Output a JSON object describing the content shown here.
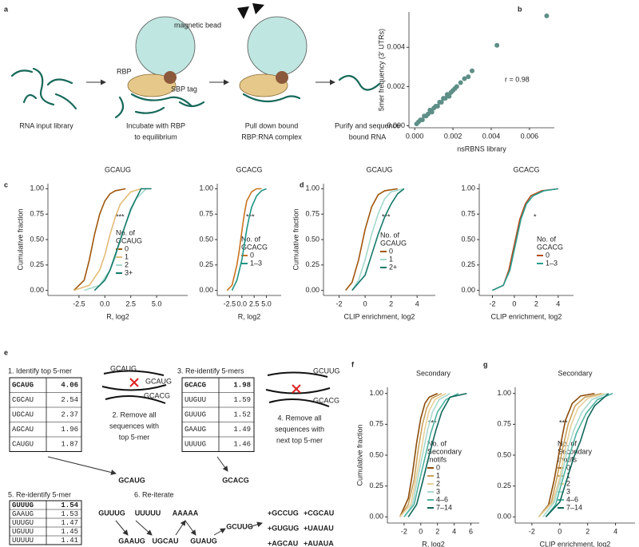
{
  "panel_labels": [
    "a",
    "b",
    "c",
    "d",
    "e",
    "f",
    "g"
  ],
  "diagram_a": {
    "bead_label": "magnetic bead",
    "rbp_label": "RBP",
    "tag_label": "SBP tag",
    "steps": [
      [
        "RNA input library"
      ],
      [
        "Incubate with RBP",
        "to equilibrium"
      ],
      [
        "Pull down bound",
        "RBP:RNA complex"
      ],
      [
        "Purify and sequence",
        "bound RNA"
      ]
    ]
  },
  "diagram_e": {
    "step1": "1. Identify top 5-mer",
    "table1": [
      [
        "GCAUG",
        4.06
      ],
      [
        "CGCAU",
        2.54
      ],
      [
        "UGCAU",
        2.37
      ],
      [
        "AGCAU",
        1.96
      ],
      [
        "CAUGU",
        1.87
      ]
    ],
    "step2": [
      "2. Remove all",
      "sequences with",
      "top 5-mer"
    ],
    "strand_labels_1": [
      "GCAUG",
      "GCAUG",
      "GCACG"
    ],
    "result1": "GCAUG",
    "step3": "3. Re-identify 5-mers",
    "table2": [
      [
        "GCACG",
        1.98
      ],
      [
        "UUGUU",
        1.59
      ],
      [
        "GUUUG",
        1.52
      ],
      [
        "GAAUG",
        1.49
      ],
      [
        "UUUUG",
        1.46
      ]
    ],
    "step4": [
      "4. Remove all",
      "sequences with",
      "next top 5-mer"
    ],
    "strand_labels_2": [
      "GCUUG",
      "GCACG"
    ],
    "result2": "GCACG",
    "step5": "5. Re-identify 5-mer",
    "table3": [
      [
        "GUUUG",
        1.54
      ],
      [
        "GAAUG",
        1.53
      ],
      [
        "UUUGU",
        1.47
      ],
      [
        "UGUUU",
        1.45
      ],
      [
        "UUUUU",
        1.41
      ]
    ],
    "step6": "6. Re-iterate",
    "flow": [
      "GUUUG",
      "UUUUU",
      "AAAAA",
      "GAAUG",
      "UGCAU",
      "GUAUG",
      "GCUUG"
    ],
    "results": [
      [
        "+GCCUG",
        "+CGCAU"
      ],
      [
        "+GUGUG",
        "+UAUAU"
      ],
      [
        "+AGCAU",
        "+AUAUA"
      ]
    ]
  },
  "chart_data": [
    {
      "type": "scatter",
      "x_label": "nsRBNS library",
      "y_label": "5mer frequency (3′ UTRs)",
      "annotation": "r = 0.98",
      "color": "#5e8f87",
      "x": [
        0.0001,
        0.0002,
        0.0003,
        0.0004,
        0.0005,
        0.0006,
        0.0007,
        0.0008,
        0.0009,
        0.001,
        0.0011,
        0.0012,
        0.0013,
        0.0014,
        0.0015,
        0.0016,
        0.0017,
        0.0018,
        0.0019,
        0.002,
        0.0021,
        0.0022,
        0.0024,
        0.0026,
        0.0028,
        0.003,
        0.0043,
        0.0069
      ],
      "values": [
        0.0001,
        0.0002,
        0.0003,
        0.0003,
        0.0005,
        0.0005,
        0.0006,
        0.0008,
        0.0007,
        0.0009,
        0.001,
        0.001,
        0.0012,
        0.0012,
        0.0014,
        0.0014,
        0.0016,
        0.0015,
        0.0017,
        0.0018,
        0.0019,
        0.002,
        0.0022,
        0.0024,
        0.0025,
        0.0028,
        0.0041,
        0.0056
      ],
      "xlim": [
        -0.0003,
        0.0073
      ],
      "ylim": [
        -0.0001,
        0.0058
      ],
      "xticks": [
        {
          "value": 0,
          "label": "0.000"
        },
        {
          "value": 0.002,
          "label": "0.002"
        },
        {
          "value": 0.004,
          "label": "0.004"
        },
        {
          "value": 0.006,
          "label": "0.006"
        }
      ],
      "yticks": [
        {
          "value": 0,
          "label": "0.000"
        },
        {
          "value": 0.002,
          "label": "0.002"
        },
        {
          "value": 0.004,
          "label": "0.004"
        }
      ]
    },
    {
      "type": "line",
      "title": "GCAUG",
      "x_label": "R, log2",
      "y_label": "Cumulative fraction",
      "annotation": "***",
      "legend_title": [
        "No. of",
        "GCAUG"
      ],
      "xlim": [
        -5.5,
        8
      ],
      "ylim": [
        -0.05,
        1.05
      ],
      "xticks": [
        -2.5,
        {
          "value": 0,
          "label": "0.0"
        },
        2.5,
        {
          "value": 5,
          "label": "5.0"
        }
      ],
      "yticks": [
        {
          "value": 0,
          "label": "0.00"
        },
        0.25,
        {
          "value": 0.5,
          "label": "0.50"
        },
        0.75,
        {
          "value": 1,
          "label": "1.00"
        }
      ],
      "series": [
        {
          "name": "0",
          "color": "#a0560c",
          "x": [
            -3,
            -2,
            -1.5,
            -1,
            -0.5,
            0,
            0.5,
            1,
            2
          ],
          "values": [
            0,
            0.1,
            0.3,
            0.55,
            0.75,
            0.88,
            0.95,
            0.98,
            1
          ]
        },
        {
          "name": "1",
          "color": "#e3bd78",
          "x": [
            -3,
            -1.5,
            -0.5,
            0,
            0.5,
            1,
            1.5,
            2.5,
            3.5
          ],
          "values": [
            0,
            0.05,
            0.2,
            0.35,
            0.55,
            0.72,
            0.85,
            0.97,
            1
          ]
        },
        {
          "name": "2",
          "color": "#a3d8cb",
          "x": [
            -2,
            -0.5,
            0.5,
            1,
            1.5,
            2,
            2.5,
            3,
            4
          ],
          "values": [
            0,
            0.05,
            0.2,
            0.32,
            0.5,
            0.65,
            0.78,
            0.9,
            1
          ]
        },
        {
          "name": "3+",
          "color": "#147a6a",
          "x": [
            -1,
            0,
            0.5,
            1,
            1.5,
            2,
            2.5,
            3.5,
            4.5
          ],
          "values": [
            0,
            0.1,
            0.2,
            0.35,
            0.5,
            0.65,
            0.8,
            1,
            1
          ]
        }
      ]
    },
    {
      "type": "line",
      "title": "GCACG",
      "x_label": "R, log2",
      "annotation": "***",
      "legend_title": [
        "No. of",
        "GCACG"
      ],
      "xlim": [
        -5,
        8
      ],
      "ylim": [
        -0.05,
        1.05
      ],
      "xticks": [
        -2.5,
        {
          "value": 0,
          "label": "0.0"
        },
        2.5,
        {
          "value": 5,
          "label": "5.0"
        }
      ],
      "yticks": [
        {
          "value": 0,
          "label": "0.00"
        },
        0.25,
        {
          "value": 0.5,
          "label": "0.50"
        },
        0.75,
        {
          "value": 1,
          "label": "1.00"
        }
      ],
      "series": [
        {
          "name": "0",
          "color": "#c8731f",
          "x": [
            -3,
            -2,
            -1,
            -0.5,
            0,
            0.5,
            1,
            2,
            3,
            4
          ],
          "values": [
            0,
            0.05,
            0.25,
            0.4,
            0.58,
            0.75,
            0.88,
            0.97,
            1,
            1
          ]
        },
        {
          "name": "1–3",
          "color": "#1f9484",
          "x": [
            -2,
            -1,
            0,
            0.5,
            1,
            1.5,
            2,
            3,
            4,
            5
          ],
          "values": [
            0,
            0.1,
            0.3,
            0.45,
            0.6,
            0.72,
            0.82,
            0.93,
            0.98,
            1
          ]
        }
      ]
    },
    {
      "type": "line",
      "title": "GCAUG",
      "x_label": "CLIP enrichment, log2",
      "y_label": "Cumulative fraction",
      "annotation": "***",
      "legend_title": [
        "No. of",
        "GCAUG"
      ],
      "xlim": [
        -3.2,
        5.4
      ],
      "ylim": [
        -0.05,
        1.05
      ],
      "xticks": [
        -2,
        0,
        2,
        4
      ],
      "yticks": [
        {
          "value": 0,
          "label": "0.00"
        },
        0.25,
        {
          "value": 0.5,
          "label": "0.50"
        },
        0.75,
        {
          "value": 1,
          "label": "1.00"
        }
      ],
      "series": [
        {
          "name": "0",
          "color": "#a0560c",
          "x": [
            -1.5,
            -1,
            -0.5,
            0,
            0.5,
            1,
            1.5,
            2.5
          ],
          "values": [
            0,
            0.08,
            0.3,
            0.6,
            0.82,
            0.94,
            0.98,
            1
          ]
        },
        {
          "name": "1",
          "color": "#a3d8cb",
          "x": [
            -1,
            -0.5,
            0,
            0.5,
            1,
            1.5,
            2,
            3
          ],
          "values": [
            0,
            0.1,
            0.3,
            0.55,
            0.75,
            0.9,
            0.97,
            1
          ]
        },
        {
          "name": "2+",
          "color": "#147a6a",
          "x": [
            -1,
            0,
            0.5,
            1,
            1.5,
            2,
            2.5,
            3
          ],
          "values": [
            0,
            0.15,
            0.35,
            0.55,
            0.72,
            0.85,
            0.95,
            1
          ]
        }
      ]
    },
    {
      "type": "line",
      "title": "GCACG",
      "x_label": "CLIP enrichment, log2",
      "annotation": "*",
      "legend_title": [
        "No. of",
        "GCACG"
      ],
      "xlim": [
        -3.2,
        5.4
      ],
      "ylim": [
        -0.05,
        1.05
      ],
      "xticks": [
        -2,
        0,
        2,
        4
      ],
      "yticks": [
        {
          "value": 0,
          "label": "0.00"
        },
        0.25,
        {
          "value": 0.5,
          "label": "0.50"
        },
        0.75,
        {
          "value": 1,
          "label": "1.00"
        }
      ],
      "series": [
        {
          "name": "0",
          "color": "#b5491d",
          "x": [
            -2,
            -1,
            -0.5,
            0,
            0.5,
            1,
            1.5,
            2.5,
            4
          ],
          "values": [
            0,
            0.05,
            0.2,
            0.45,
            0.7,
            0.85,
            0.93,
            0.98,
            1
          ]
        },
        {
          "name": "1–3",
          "color": "#2a9d8f",
          "x": [
            -2,
            -1,
            -0.4,
            0.1,
            0.6,
            1.1,
            1.7,
            2.7,
            4
          ],
          "values": [
            0,
            0.05,
            0.2,
            0.45,
            0.7,
            0.85,
            0.93,
            0.98,
            1
          ]
        }
      ]
    },
    {
      "type": "line",
      "title": "Secondary",
      "x_label": "R, log2",
      "y_label": "Cumulative fraction",
      "annotation": "***",
      "legend_title": [
        "No. of",
        "Secondary",
        "motifs"
      ],
      "xlim": [
        -4,
        7
      ],
      "ylim": [
        -0.05,
        1.05
      ],
      "xticks": [
        -2,
        0,
        2,
        4,
        6
      ],
      "yticks": [
        {
          "value": 0,
          "label": "0.00"
        },
        0.25,
        {
          "value": 0.5,
          "label": "0.50"
        },
        0.75,
        {
          "value": 1,
          "label": "1.00"
        }
      ],
      "series": [
        {
          "name": "0",
          "color": "#8a4b0b",
          "x": [
            -2.5,
            -1.5,
            -1,
            -0.5,
            0,
            0.5,
            1,
            2
          ],
          "values": [
            0,
            0.15,
            0.35,
            0.6,
            0.8,
            0.92,
            0.97,
            1
          ]
        },
        {
          "name": "1",
          "color": "#c9a05a",
          "x": [
            -2.5,
            -1.5,
            -0.8,
            -0.3,
            0.2,
            0.7,
            1.3,
            2.5
          ],
          "values": [
            0,
            0.1,
            0.3,
            0.55,
            0.75,
            0.88,
            0.96,
            1
          ]
        },
        {
          "name": "2",
          "color": "#e6d09a",
          "x": [
            -2.5,
            -1.2,
            -0.6,
            0,
            0.5,
            1,
            1.7,
            3
          ],
          "values": [
            0,
            0.1,
            0.3,
            0.52,
            0.72,
            0.86,
            0.95,
            1
          ]
        },
        {
          "name": "3",
          "color": "#a9d9cf",
          "x": [
            -2,
            -1,
            -0.4,
            0.2,
            0.8,
            1.4,
            2.2,
            3.5
          ],
          "values": [
            0,
            0.1,
            0.3,
            0.5,
            0.7,
            0.85,
            0.95,
            1
          ]
        },
        {
          "name": "4–6",
          "color": "#4fb3a0",
          "x": [
            -2,
            -0.8,
            -0.2,
            0.5,
            1.2,
            2,
            3,
            4.5
          ],
          "values": [
            0,
            0.1,
            0.28,
            0.48,
            0.68,
            0.85,
            0.95,
            1
          ]
        },
        {
          "name": "7–14",
          "color": "#10665a",
          "x": [
            -1.5,
            -0.5,
            0.2,
            1,
            1.8,
            2.5,
            3.5,
            5.5
          ],
          "values": [
            0,
            0.1,
            0.28,
            0.5,
            0.7,
            0.85,
            0.97,
            1
          ]
        }
      ]
    },
    {
      "type": "line",
      "title": "Secondary",
      "x_label": "CLIP enrichment, log2",
      "annotation": "***",
      "legend_title": [
        "No. of",
        "Secondary",
        "motifs"
      ],
      "xlim": [
        -3.2,
        5.4
      ],
      "ylim": [
        -0.05,
        1.05
      ],
      "xticks": [
        -2,
        0,
        2,
        4
      ],
      "yticks": [
        {
          "value": 0,
          "label": "0.00"
        },
        0.25,
        {
          "value": 0.5,
          "label": "0.50"
        },
        0.75,
        {
          "value": 1,
          "label": "1.00"
        }
      ],
      "series": [
        {
          "name": "0",
          "color": "#8a4b0b",
          "x": [
            -1.5,
            -0.8,
            -0.4,
            0,
            0.4,
            0.9,
            1.5,
            2.5
          ],
          "values": [
            0,
            0.1,
            0.3,
            0.55,
            0.78,
            0.92,
            0.98,
            1
          ]
        },
        {
          "name": "1",
          "color": "#c9a05a",
          "x": [
            -1.5,
            -0.6,
            -0.2,
            0.2,
            0.6,
            1.1,
            1.8,
            3
          ],
          "values": [
            0,
            0.12,
            0.32,
            0.55,
            0.75,
            0.9,
            0.97,
            1
          ]
        },
        {
          "name": "2",
          "color": "#e6d09a",
          "x": [
            -1.5,
            -0.5,
            0,
            0.4,
            0.8,
            1.3,
            2,
            3.2
          ],
          "values": [
            0,
            0.12,
            0.32,
            0.55,
            0.74,
            0.88,
            0.96,
            1
          ]
        },
        {
          "name": "3",
          "color": "#a9d9cf",
          "x": [
            -1.2,
            -0.4,
            0.1,
            0.5,
            1,
            1.6,
            2.3,
            3.4
          ],
          "values": [
            0,
            0.12,
            0.32,
            0.52,
            0.7,
            0.85,
            0.95,
            1
          ]
        },
        {
          "name": "4–6",
          "color": "#4fb3a0",
          "x": [
            -1,
            -0.3,
            0.2,
            0.7,
            1.2,
            1.9,
            2.7,
            3.8
          ],
          "values": [
            0,
            0.1,
            0.3,
            0.5,
            0.68,
            0.84,
            0.95,
            1
          ]
        },
        {
          "name": "7–14",
          "color": "#10665a",
          "x": [
            -1,
            0,
            0.5,
            1,
            1.5,
            2,
            2.5,
            3.5
          ],
          "values": [
            0,
            0.12,
            0.3,
            0.48,
            0.62,
            0.8,
            0.9,
            1
          ]
        }
      ]
    }
  ]
}
